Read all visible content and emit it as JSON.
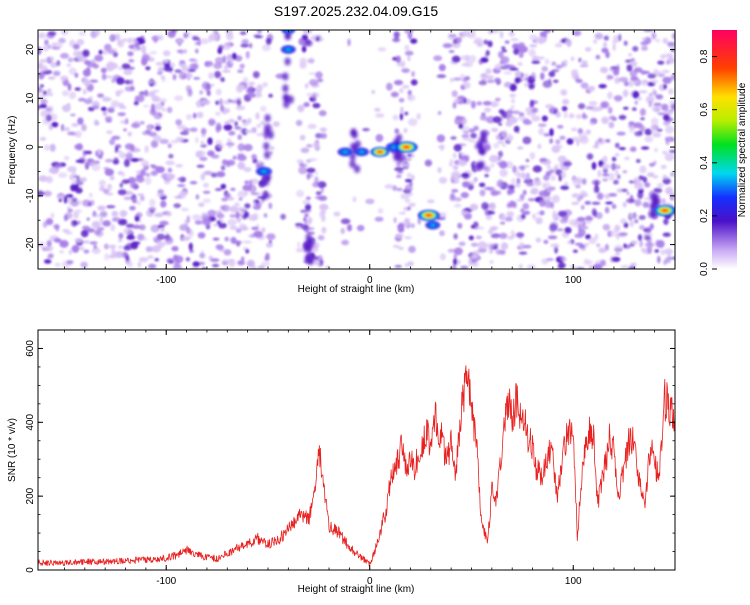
{
  "figure_title": "S197.2025.232.04.09.G15",
  "colors": {
    "axis": "#000000",
    "snr_line": "#e8201f",
    "blob_bg": "#d9c4f5",
    "blob_mid": "#a77de8",
    "blob_dark": "#5b1fc8"
  },
  "chart_data": [
    {
      "type": "heatmap",
      "title": "S197.2025.232.04.09.G15",
      "xlabel": "Height of straight line (km)",
      "ylabel": "Frequency (Hz)",
      "xlim": [
        -163,
        150
      ],
      "ylim": [
        -25,
        24
      ],
      "xticks": [
        -100,
        0,
        100
      ],
      "xtick_labels": [
        "-100",
        "0",
        "100"
      ],
      "yticks": [
        -20,
        -10,
        0,
        10,
        20
      ],
      "ytick_labels": [
        "-20",
        "-10",
        "0",
        "10",
        "20"
      ],
      "colorbar": {
        "label": "Normalized spectral amplitude",
        "range": [
          0,
          0.9
        ],
        "ticks": [
          0.0,
          0.2,
          0.4,
          0.6,
          0.8
        ],
        "tick_labels": [
          "0.0",
          "0.2",
          "0.4",
          "0.6",
          "0.8"
        ]
      },
      "empty_bands_km": [
        [
          -48,
          -35
        ],
        [
          -22,
          12
        ],
        [
          22,
          34
        ],
        [
          36,
          40
        ]
      ],
      "hotspots": [
        {
          "x": -52,
          "y": -5,
          "amplitude": 0.4
        },
        {
          "x": -12,
          "y": -1,
          "amplitude": 0.35
        },
        {
          "x": -4,
          "y": -1,
          "amplitude": 0.3
        },
        {
          "x": 5,
          "y": -1,
          "amplitude": 0.6
        },
        {
          "x": 12,
          "y": 0,
          "amplitude": 0.45
        },
        {
          "x": 18,
          "y": 0,
          "amplitude": 0.9
        },
        {
          "x": 29,
          "y": -14,
          "amplitude": 0.85
        },
        {
          "x": 31,
          "y": -16,
          "amplitude": 0.3
        },
        {
          "x": 145,
          "y": -13,
          "amplitude": 0.9
        },
        {
          "x": -40,
          "y": 20,
          "amplitude": 0.3
        },
        {
          "x": -40,
          "y": 24,
          "amplitude": 0.2
        }
      ]
    },
    {
      "type": "line",
      "xlabel": "Height of straight line (km)",
      "ylabel": "SNR (10 * v/v)",
      "xlim": [
        -163,
        150
      ],
      "ylim": [
        0,
        650
      ],
      "xticks": [
        -100,
        0,
        100
      ],
      "xtick_labels": [
        "-100",
        "0",
        "100"
      ],
      "yticks": [
        0,
        200,
        400,
        600
      ],
      "ytick_labels": [
        "0",
        "200",
        "400",
        "600"
      ],
      "series": [
        {
          "name": "SNR",
          "x": [
            -163,
            -150,
            -140,
            -130,
            -120,
            -110,
            -100,
            -95,
            -90,
            -85,
            -80,
            -75,
            -70,
            -65,
            -60,
            -55,
            -50,
            -45,
            -40,
            -35,
            -30,
            -27,
            -25,
            -23,
            -20,
            -15,
            -10,
            -5,
            0,
            3,
            5,
            8,
            10,
            12,
            14,
            16,
            18,
            20,
            22,
            25,
            28,
            30,
            32,
            35,
            38,
            40,
            42,
            45,
            48,
            50,
            52,
            55,
            58,
            60,
            62,
            65,
            68,
            70,
            72,
            75,
            78,
            80,
            82,
            85,
            88,
            90,
            92,
            95,
            98,
            100,
            102,
            105,
            108,
            110,
            112,
            115,
            118,
            120,
            122,
            125,
            128,
            130,
            132,
            135,
            138,
            140,
            142,
            145,
            148,
            150
          ],
          "y": [
            20,
            20,
            22,
            22,
            25,
            28,
            32,
            40,
            55,
            40,
            35,
            30,
            45,
            60,
            70,
            85,
            70,
            80,
            110,
            150,
            140,
            200,
            320,
            250,
            120,
            100,
            60,
            40,
            15,
            60,
            100,
            160,
            240,
            260,
            300,
            350,
            260,
            300,
            280,
            330,
            370,
            340,
            410,
            360,
            300,
            340,
            250,
            420,
            560,
            420,
            380,
            120,
            80,
            220,
            180,
            330,
            460,
            400,
            460,
            420,
            360,
            330,
            270,
            260,
            330,
            300,
            200,
            320,
            380,
            360,
            90,
            310,
            380,
            360,
            180,
            260,
            360,
            320,
            200,
            280,
            370,
            330,
            250,
            180,
            330,
            300,
            240,
            460,
            440,
            420
          ]
        }
      ]
    }
  ]
}
